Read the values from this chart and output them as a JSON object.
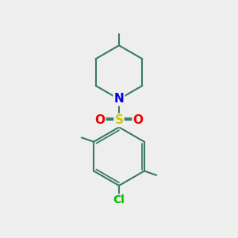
{
  "background_color": "#eeeeee",
  "bond_color": "#3a7a68",
  "bond_width": 1.5,
  "N_color": "#0000ee",
  "S_color": "#cccc00",
  "O_color": "#ee0000",
  "Cl_color": "#00bb00",
  "figsize": [
    3.0,
    3.0
  ],
  "dpi": 100,
  "xlim": [
    0,
    10
  ],
  "ylim": [
    0,
    10
  ]
}
